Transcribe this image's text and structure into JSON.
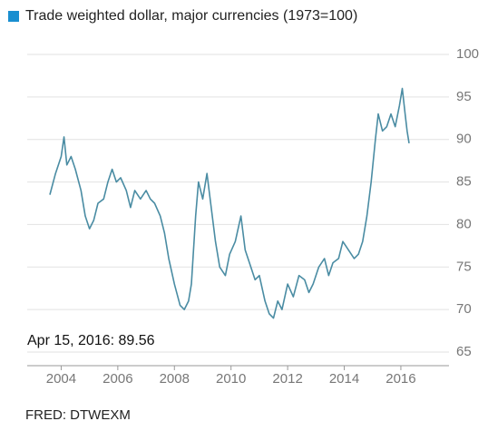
{
  "chart_data": {
    "type": "line",
    "title": "Trade weighted dollar, major currencies (1973=100)",
    "annotation": "Apr 15, 2016: 89.56",
    "source": "FRED: DTWEXM",
    "color": "#4a8ca3",
    "legend_color": "#1a8fd0",
    "x": [
      2003.6,
      2003.8,
      2004.0,
      2004.1,
      2004.2,
      2004.35,
      2004.5,
      2004.7,
      2004.85,
      2005.0,
      2005.15,
      2005.3,
      2005.5,
      2005.65,
      2005.8,
      2005.95,
      2006.1,
      2006.3,
      2006.45,
      2006.6,
      2006.8,
      2007.0,
      2007.15,
      2007.3,
      2007.5,
      2007.65,
      2007.8,
      2008.0,
      2008.2,
      2008.35,
      2008.5,
      2008.6,
      2008.75,
      2008.85,
      2009.0,
      2009.15,
      2009.3,
      2009.45,
      2009.6,
      2009.8,
      2009.95,
      2010.15,
      2010.35,
      2010.5,
      2010.7,
      2010.85,
      2011.0,
      2011.2,
      2011.35,
      2011.5,
      2011.65,
      2011.8,
      2012.0,
      2012.2,
      2012.4,
      2012.6,
      2012.75,
      2012.9,
      2013.1,
      2013.3,
      2013.45,
      2013.6,
      2013.8,
      2013.95,
      2014.15,
      2014.35,
      2014.5,
      2014.65,
      2014.8,
      2014.95,
      2015.1,
      2015.2,
      2015.35,
      2015.5,
      2015.65,
      2015.8,
      2015.95,
      2016.05,
      2016.15,
      2016.22,
      2016.29
    ],
    "values": [
      83.5,
      86,
      88,
      90.3,
      87,
      88,
      86.5,
      84,
      81,
      79.5,
      80.5,
      82.5,
      83,
      85,
      86.5,
      85,
      85.5,
      84,
      82,
      84,
      83,
      84,
      83,
      82.5,
      81,
      79,
      76,
      73,
      70.5,
      70,
      71,
      73,
      81,
      85,
      83,
      86,
      82,
      78,
      75,
      74,
      76.5,
      78,
      81,
      77,
      75,
      73.5,
      74,
      71,
      69.5,
      69,
      71,
      70,
      73,
      71.5,
      74,
      73.5,
      72,
      73,
      75,
      76,
      74,
      75.5,
      76,
      78,
      77,
      76,
      76.5,
      78,
      81,
      85,
      90,
      93,
      91,
      91.5,
      93,
      91.5,
      94,
      96,
      93,
      91,
      89.56
    ],
    "xlim": [
      2002.8,
      2017.7
    ],
    "xticks": [
      2004,
      2006,
      2008,
      2010,
      2012,
      2014,
      2016
    ],
    "ylim": [
      63.4,
      101.6
    ],
    "yticks": [
      65,
      70,
      75,
      80,
      85,
      90,
      95,
      100
    ],
    "grid": true
  }
}
